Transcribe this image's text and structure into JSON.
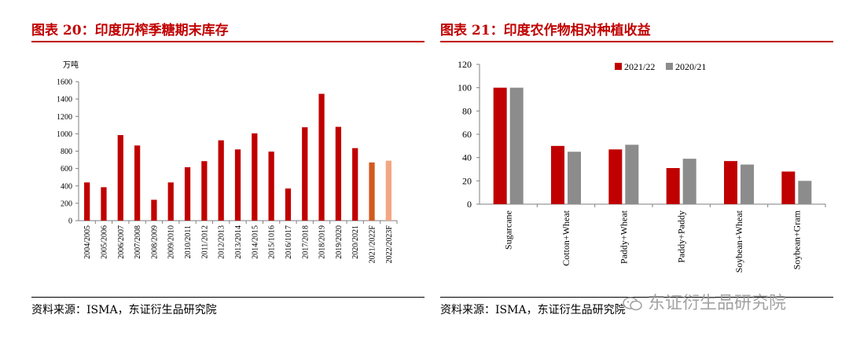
{
  "left_figure": {
    "title": "图表 20：印度历榨季糖期末库存",
    "source": "资料来源：ISMA，东证衍生品研究院"
  },
  "right_figure": {
    "title": "图表 21：印度农作物相对种植收益",
    "source": "资料来源：ISMA，东证衍生品研究院"
  },
  "watermark": {
    "text": "东证衍生品研究院",
    "icon": "wechat-icon"
  },
  "colors": {
    "accent_red": "#c00000",
    "gray": "#8c8c8c",
    "forecast_2022": "#d35a1f",
    "forecast_2023": "#f4a582"
  },
  "chart_data": [
    {
      "type": "bar",
      "unit_label": "万吨",
      "categories": [
        "2004/2005",
        "2005/2006",
        "2006/2007",
        "2007/2008",
        "2008/2009",
        "2009/2010",
        "2010/2011",
        "2011/2012",
        "2012/2013",
        "2013/2014",
        "2014/2015",
        "2015/1016",
        "2016/1017",
        "2017/2018",
        "2018/2019",
        "2019/2020",
        "2020/2021",
        "2021/2022F",
        "2022/2023F"
      ],
      "values": [
        440,
        385,
        985,
        865,
        240,
        440,
        615,
        685,
        925,
        820,
        1005,
        795,
        370,
        1075,
        1460,
        1080,
        835,
        670,
        690
      ],
      "bar_colors": [
        "#c00000",
        "#c00000",
        "#c00000",
        "#c00000",
        "#c00000",
        "#c00000",
        "#c00000",
        "#c00000",
        "#c00000",
        "#c00000",
        "#c00000",
        "#c00000",
        "#c00000",
        "#c00000",
        "#c00000",
        "#c00000",
        "#c00000",
        "#d35a1f",
        "#f4a582"
      ],
      "yticks": [
        0,
        200,
        400,
        600,
        800,
        1000,
        1200,
        1400,
        1600
      ],
      "ylim": [
        0,
        1600
      ],
      "grid": false,
      "legend": "none"
    },
    {
      "type": "bar",
      "categories": [
        "Sugarcane",
        "Cotton+Wheat",
        "Paddy+Wheat",
        "Paddy+Paddy",
        "Soybean+Wheat",
        "Soybean+Gram"
      ],
      "series": [
        {
          "name": "2021/22",
          "color": "#c00000",
          "values": [
            100,
            50,
            47,
            31,
            37,
            28
          ]
        },
        {
          "name": "2020/21",
          "color": "#8c8c8c",
          "values": [
            100,
            45,
            51,
            39,
            34,
            20
          ]
        }
      ],
      "yticks": [
        0,
        20,
        40,
        60,
        80,
        100,
        120
      ],
      "ylim": [
        0,
        120
      ],
      "grid": false,
      "legend": "top"
    }
  ]
}
